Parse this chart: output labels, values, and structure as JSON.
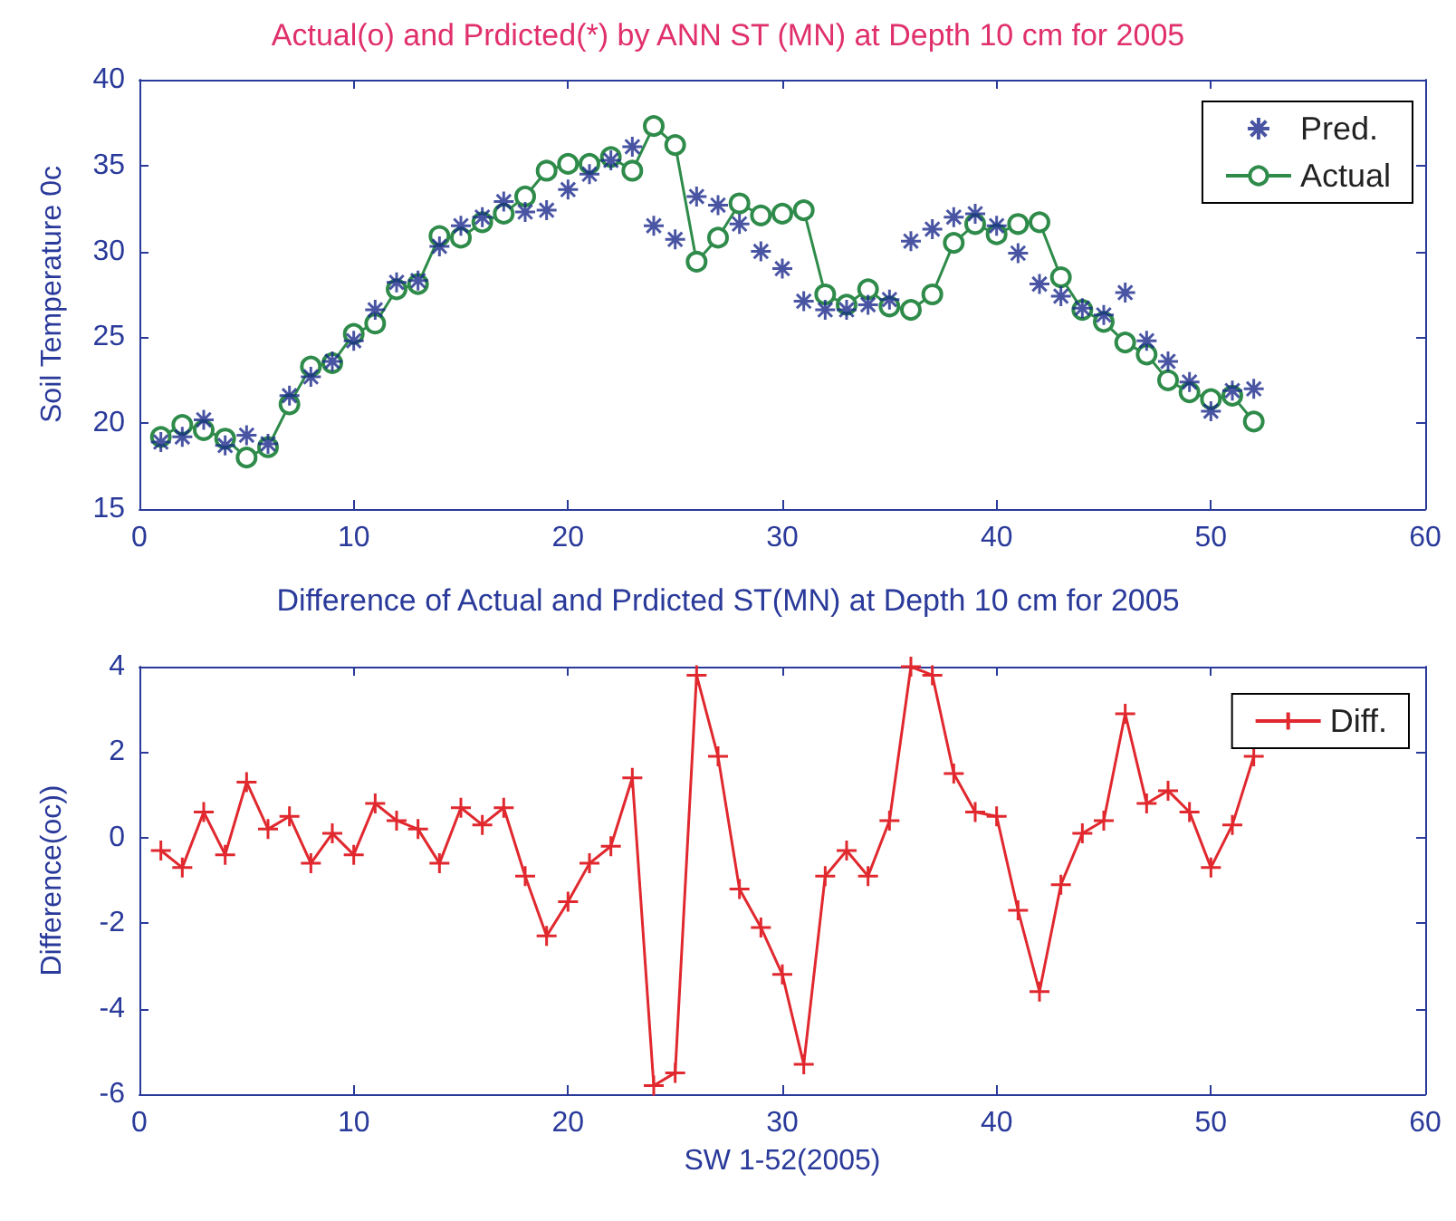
{
  "chart_data": [
    {
      "type": "scatter",
      "title": "Actual(o) and Prdicted(*) by ANN ST (MN) at Depth 10 cm for 2005",
      "ylabel": "Soil Temperature 0c",
      "x": [
        1,
        2,
        3,
        4,
        5,
        6,
        7,
        8,
        9,
        10,
        11,
        12,
        13,
        14,
        15,
        16,
        17,
        18,
        19,
        20,
        21,
        22,
        23,
        24,
        25,
        26,
        27,
        28,
        29,
        30,
        31,
        32,
        33,
        34,
        35,
        36,
        37,
        38,
        39,
        40,
        41,
        42,
        43,
        44,
        45,
        46,
        47,
        48,
        49,
        50,
        51,
        52
      ],
      "series": [
        {
          "name": "Pred.",
          "marker": "cross",
          "color": "#1c2a8c",
          "values": [
            18.9,
            19.2,
            20.2,
            18.7,
            19.3,
            18.8,
            21.6,
            22.7,
            23.6,
            24.8,
            26.6,
            28.2,
            28.3,
            30.3,
            31.5,
            32.0,
            32.9,
            32.3,
            32.4,
            33.6,
            34.5,
            35.3,
            36.1,
            31.5,
            30.7,
            33.2,
            32.7,
            31.6,
            30.0,
            29.0,
            27.1,
            26.6,
            26.6,
            26.9,
            27.2,
            30.6,
            31.3,
            32.0,
            32.2,
            31.5,
            29.9,
            28.1,
            27.4,
            26.7,
            26.3,
            27.6,
            24.8,
            23.6,
            22.4,
            20.7,
            21.9,
            22.0
          ]
        },
        {
          "name": "Actual",
          "type": "line",
          "marker": "circle",
          "color": "#2e8b4a",
          "values": [
            19.2,
            19.9,
            19.6,
            19.1,
            18.0,
            18.6,
            21.1,
            23.3,
            23.5,
            25.2,
            25.8,
            27.8,
            28.1,
            30.9,
            30.8,
            31.7,
            32.2,
            33.2,
            34.7,
            35.1,
            35.1,
            35.5,
            34.7,
            37.3,
            36.2,
            29.4,
            30.8,
            32.8,
            32.1,
            32.2,
            32.4,
            27.5,
            26.9,
            27.8,
            26.8,
            26.6,
            27.5,
            30.5,
            31.6,
            31.0,
            31.6,
            31.7,
            28.5,
            26.6,
            25.9,
            24.7,
            24.0,
            22.5,
            21.8,
            21.4,
            21.6,
            20.1
          ]
        }
      ],
      "xlim": [
        0,
        60
      ],
      "xticks": [
        0,
        10,
        20,
        30,
        40,
        50,
        60
      ],
      "ylim": [
        15,
        40
      ],
      "yticks": [
        15,
        20,
        25,
        30,
        35,
        40
      ],
      "grid": false,
      "legend": "top right"
    },
    {
      "type": "line",
      "title": "Difference of Actual and Prdicted ST(MN) at Depth 10 cm for 2005",
      "xlabel": "SW 1-52(2005)",
      "ylabel": "Difference(oc))",
      "x": [
        1,
        2,
        3,
        4,
        5,
        6,
        7,
        8,
        9,
        10,
        11,
        12,
        13,
        14,
        15,
        16,
        17,
        18,
        19,
        20,
        21,
        22,
        23,
        24,
        25,
        26,
        27,
        28,
        29,
        30,
        31,
        32,
        33,
        34,
        35,
        36,
        37,
        38,
        39,
        40,
        41,
        42,
        43,
        44,
        45,
        46,
        47,
        48,
        49,
        50,
        51,
        52
      ],
      "series": [
        {
          "name": "Diff.",
          "marker": "cross",
          "color": "#e0282e",
          "values": [
            -0.3,
            -0.7,
            0.6,
            -0.4,
            1.3,
            0.2,
            0.5,
            -0.6,
            0.1,
            -0.4,
            0.8,
            0.4,
            0.2,
            -0.6,
            0.7,
            0.3,
            0.7,
            -0.9,
            -2.3,
            -1.5,
            -0.6,
            -0.2,
            1.4,
            -5.8,
            -5.5,
            3.8,
            1.9,
            -1.2,
            -2.1,
            -3.2,
            -5.3,
            -0.9,
            -0.3,
            -0.9,
            0.4,
            4.0,
            3.8,
            1.5,
            0.6,
            0.5,
            -1.7,
            -3.6,
            -1.1,
            0.1,
            0.4,
            2.9,
            0.8,
            1.1,
            0.6,
            -0.7,
            0.3,
            1.9
          ]
        }
      ],
      "xlim": [
        0,
        60
      ],
      "xticks": [
        0,
        10,
        20,
        30,
        40,
        50,
        60
      ],
      "ylim": [
        -6,
        4
      ],
      "yticks": [
        -6,
        -4,
        -2,
        0,
        2,
        4
      ],
      "grid": false,
      "legend": "top right"
    }
  ]
}
